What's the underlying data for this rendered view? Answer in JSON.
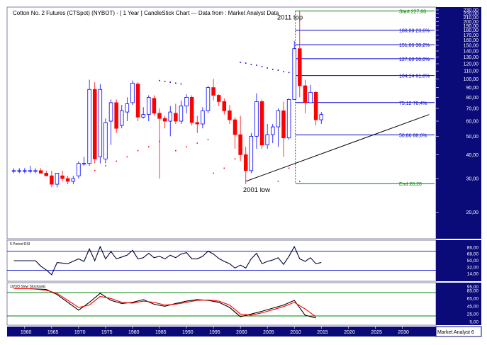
{
  "header": {
    "title": "Cotton No. 2 Futures (CTSpot) (NYBOT) -  [ 1 Year ] CandleStick Chart --- Data from : Market Analyst Data"
  },
  "footer": {
    "brand": "Market Analyst 6"
  },
  "chart_data": [
    {
      "type": "candlestick",
      "title": "Cotton No. 2 Futures (CTSpot) (NYBOT) -  [ 1 Year ] CandleStick Chart --- Data from : Market Analyst Data",
      "period": "1 Year",
      "xlim": [
        1957,
        2036
      ],
      "ylim": [
        15,
        230
      ],
      "y_scale": "log",
      "y_ticks": [
        "230,00",
        "220,00",
        "210,00",
        "200,00",
        "190,00",
        "180,00",
        "170,00",
        "160,00",
        "150,00",
        "140,00",
        "130,00",
        "120,00",
        "110,00",
        "100,00",
        "90,00",
        "80,00",
        "70,00",
        "60,00",
        "50,00",
        "40,00",
        "30,00",
        "20,00"
      ],
      "x_ticks": [
        "1960",
        "1965",
        "1970",
        "1975",
        "1980",
        "1985",
        "1990",
        "1995",
        "2000",
        "2005",
        "2010",
        "2015",
        "2020",
        "2025",
        "2030"
      ],
      "candles": [
        {
          "x": 1958,
          "o": 33,
          "h": 34,
          "l": 32,
          "c": 33
        },
        {
          "x": 1959,
          "o": 33,
          "h": 34,
          "l": 32,
          "c": 33
        },
        {
          "x": 1960,
          "o": 33,
          "h": 34,
          "l": 32,
          "c": 33
        },
        {
          "x": 1961,
          "o": 33,
          "h": 35,
          "l": 32,
          "c": 33
        },
        {
          "x": 1962,
          "o": 33,
          "h": 34,
          "l": 32,
          "c": 33
        },
        {
          "x": 1963,
          "o": 33,
          "h": 34,
          "l": 32,
          "c": 32
        },
        {
          "x": 1964,
          "o": 32,
          "h": 33,
          "l": 31,
          "c": 31
        },
        {
          "x": 1965,
          "o": 31,
          "h": 33,
          "l": 27,
          "c": 28
        },
        {
          "x": 1966,
          "o": 28,
          "h": 32,
          "l": 27,
          "c": 32
        },
        {
          "x": 1967,
          "o": 31,
          "h": 33,
          "l": 29,
          "c": 30
        },
        {
          "x": 1968,
          "o": 30,
          "h": 31,
          "l": 28,
          "c": 29
        },
        {
          "x": 1969,
          "o": 29,
          "h": 31,
          "l": 28,
          "c": 30
        },
        {
          "x": 1970,
          "o": 31,
          "h": 37,
          "l": 30,
          "c": 36
        },
        {
          "x": 1971,
          "o": 36,
          "h": 39,
          "l": 35,
          "c": 36
        },
        {
          "x": 1972,
          "o": 36,
          "h": 99,
          "l": 35,
          "c": 88
        },
        {
          "x": 1973,
          "o": 88,
          "h": 96,
          "l": 36,
          "c": 38
        },
        {
          "x": 1974,
          "o": 39,
          "h": 94,
          "l": 36,
          "c": 88
        },
        {
          "x": 1975,
          "o": 38,
          "h": 62,
          "l": 36,
          "c": 59
        },
        {
          "x": 1976,
          "o": 60,
          "h": 78,
          "l": 45,
          "c": 75
        },
        {
          "x": 1977,
          "o": 75,
          "h": 78,
          "l": 52,
          "c": 55
        },
        {
          "x": 1978,
          "o": 57,
          "h": 73,
          "l": 55,
          "c": 68
        },
        {
          "x": 1979,
          "o": 67,
          "h": 80,
          "l": 60,
          "c": 74
        },
        {
          "x": 1980,
          "o": 75,
          "h": 98,
          "l": 73,
          "c": 95
        },
        {
          "x": 1981,
          "o": 94,
          "h": 96,
          "l": 60,
          "c": 63
        },
        {
          "x": 1982,
          "o": 63,
          "h": 71,
          "l": 62,
          "c": 65
        },
        {
          "x": 1983,
          "o": 65,
          "h": 82,
          "l": 60,
          "c": 80
        },
        {
          "x": 1984,
          "o": 79,
          "h": 82,
          "l": 64,
          "c": 66
        },
        {
          "x": 1985,
          "o": 66,
          "h": 70,
          "l": 30,
          "c": 62
        },
        {
          "x": 1986,
          "o": 62,
          "h": 64,
          "l": 55,
          "c": 60
        },
        {
          "x": 1987,
          "o": 60,
          "h": 72,
          "l": 50,
          "c": 67
        },
        {
          "x": 1988,
          "o": 66,
          "h": 74,
          "l": 58,
          "c": 60
        },
        {
          "x": 1989,
          "o": 60,
          "h": 77,
          "l": 58,
          "c": 72
        },
        {
          "x": 1990,
          "o": 72,
          "h": 83,
          "l": 66,
          "c": 80
        },
        {
          "x": 1991,
          "o": 80,
          "h": 82,
          "l": 57,
          "c": 59
        },
        {
          "x": 1992,
          "o": 59,
          "h": 64,
          "l": 52,
          "c": 58
        },
        {
          "x": 1993,
          "o": 58,
          "h": 71,
          "l": 55,
          "c": 68
        },
        {
          "x": 1994,
          "o": 68,
          "h": 92,
          "l": 66,
          "c": 90
        },
        {
          "x": 1995,
          "o": 90,
          "h": 100,
          "l": 77,
          "c": 82
        },
        {
          "x": 1996,
          "o": 82,
          "h": 83,
          "l": 72,
          "c": 76
        },
        {
          "x": 1997,
          "o": 76,
          "h": 79,
          "l": 65,
          "c": 68
        },
        {
          "x": 1998,
          "o": 68,
          "h": 73,
          "l": 58,
          "c": 61
        },
        {
          "x": 1999,
          "o": 61,
          "h": 63,
          "l": 43,
          "c": 51
        },
        {
          "x": 2000,
          "o": 51,
          "h": 64,
          "l": 37,
          "c": 40
        },
        {
          "x": 2001,
          "o": 40,
          "h": 44,
          "l": 28,
          "c": 33
        },
        {
          "x": 2002,
          "o": 33,
          "h": 52,
          "l": 32,
          "c": 50
        },
        {
          "x": 2003,
          "o": 50,
          "h": 84,
          "l": 43,
          "c": 76
        },
        {
          "x": 2004,
          "o": 76,
          "h": 78,
          "l": 43,
          "c": 45
        },
        {
          "x": 2005,
          "o": 45,
          "h": 58,
          "l": 43,
          "c": 51
        },
        {
          "x": 2006,
          "o": 51,
          "h": 58,
          "l": 46,
          "c": 56
        },
        {
          "x": 2007,
          "o": 56,
          "h": 70,
          "l": 44,
          "c": 68
        },
        {
          "x": 2008,
          "o": 68,
          "h": 76,
          "l": 39,
          "c": 49
        },
        {
          "x": 2009,
          "o": 49,
          "h": 79,
          "l": 48,
          "c": 78
        },
        {
          "x": 2010,
          "o": 78,
          "h": 158,
          "l": 78,
          "c": 144
        },
        {
          "x": 2011,
          "o": 144,
          "h": 227,
          "l": 80,
          "c": 92
        },
        {
          "x": 2012,
          "o": 92,
          "h": 99,
          "l": 66,
          "c": 75
        },
        {
          "x": 2013,
          "o": 75,
          "h": 93,
          "l": 75,
          "c": 85
        },
        {
          "x": 2014,
          "o": 85,
          "h": 86,
          "l": 57,
          "c": 61
        },
        {
          "x": 2015,
          "o": 61,
          "h": 67,
          "l": 58,
          "c": 65
        }
      ],
      "fib_levels": [
        {
          "value": 227,
          "label": "Start 227,00",
          "color": "#008000"
        },
        {
          "value": 180.08,
          "label": "180,08 23,6%",
          "color": "#0000cc"
        },
        {
          "value": 151.06,
          "label": "151,06 38,2%",
          "color": "#0000cc"
        },
        {
          "value": 127.6,
          "label": "127,60 50,0%",
          "color": "#0000cc"
        },
        {
          "value": 104.14,
          "label": "104,14 61,8%",
          "color": "#0000cc"
        },
        {
          "value": 75.12,
          "label": "75,12 76,4%",
          "color": "#0000cc"
        },
        {
          "value": 50.86,
          "label": "50,86 88,6%",
          "color": "#0000cc"
        },
        {
          "value": 28.2,
          "label": "End 28,20",
          "color": "#008000"
        }
      ],
      "annotations": [
        {
          "text": "2011 top",
          "x": 2006.8,
          "y": 205
        },
        {
          "text": "2001 low",
          "x": 2000.5,
          "y": 25.5
        }
      ],
      "trendline": {
        "x1": 2001,
        "y1": 29,
        "x2": 2035,
        "y2": 65
      },
      "dots_red": [
        {
          "x": 1973,
          "y": 33
        },
        {
          "x": 1975,
          "y": 35
        },
        {
          "x": 1977,
          "y": 37
        },
        {
          "x": 1979,
          "y": 39
        },
        {
          "x": 1981,
          "y": 42
        },
        {
          "x": 1983,
          "y": 44
        },
        {
          "x": 1985,
          "y": 47
        },
        {
          "x": 1988,
          "y": 42
        },
        {
          "x": 1990,
          "y": 44
        },
        {
          "x": 1992,
          "y": 46
        },
        {
          "x": 1994,
          "y": 48
        },
        {
          "x": 1995,
          "y": 32
        },
        {
          "x": 1997,
          "y": 34
        },
        {
          "x": 1999,
          "y": 38
        },
        {
          "x": 2007,
          "y": 29
        },
        {
          "x": 2009,
          "y": 34
        },
        {
          "x": 2011,
          "y": 29
        }
      ],
      "dots_blue": [
        {
          "x": 1985,
          "y": 98
        },
        {
          "x": 1986,
          "y": 97
        },
        {
          "x": 1987,
          "y": 96
        },
        {
          "x": 1988,
          "y": 95
        },
        {
          "x": 1989,
          "y": 94
        },
        {
          "x": 2000,
          "y": 122
        },
        {
          "x": 2001,
          "y": 121
        },
        {
          "x": 2002,
          "y": 119
        },
        {
          "x": 2003,
          "y": 118
        },
        {
          "x": 2004,
          "y": 116
        },
        {
          "x": 2005,
          "y": 114
        },
        {
          "x": 2006,
          "y": 112
        },
        {
          "x": 2007,
          "y": 111
        },
        {
          "x": 2008,
          "y": 109
        },
        {
          "x": 2009,
          "y": 108
        }
      ],
      "up_color": "#0000ff",
      "down_color": "#ff0000",
      "trend_color": "#000000",
      "grid": false
    },
    {
      "type": "line",
      "title": "5 Period RSI",
      "ylim": [
        0,
        100
      ],
      "y_ticks": [
        "86,00",
        "68,00",
        "50,00",
        "32,00",
        "14,00"
      ],
      "bands": [
        {
          "value": 76,
          "color": "#0000cc"
        },
        {
          "value": 24,
          "color": "#0000cc"
        }
      ],
      "series": [
        {
          "color": "#000033",
          "x": [
            1958,
            1960,
            1962,
            1963,
            1964,
            1965,
            1966,
            1968,
            1970,
            1971,
            1972,
            1973,
            1974,
            1975,
            1976,
            1977,
            1978,
            1979,
            1980,
            1981,
            1982,
            1983,
            1984,
            1985,
            1986,
            1987,
            1988,
            1989,
            1990,
            1991,
            1992,
            1993,
            1994,
            1995,
            1996,
            1997,
            1998,
            1999,
            2000,
            2001,
            2002,
            2003,
            2004,
            2005,
            2006,
            2007,
            2008,
            2009,
            2010,
            2011,
            2012,
            2013,
            2014,
            2015
          ],
          "y": [
            50,
            50,
            50,
            35,
            25,
            12,
            45,
            42,
            55,
            48,
            82,
            50,
            88,
            55,
            75,
            55,
            60,
            65,
            78,
            55,
            58,
            70,
            58,
            62,
            55,
            65,
            58,
            68,
            72,
            55,
            55,
            62,
            76,
            68,
            56,
            48,
            42,
            30,
            38,
            30,
            55,
            70,
            42,
            48,
            52,
            58,
            40,
            62,
            88,
            55,
            48,
            58,
            42,
            45
          ]
        }
      ]
    },
    {
      "type": "line",
      "title": "10/3/3 Slow Stochastic",
      "ylim": [
        0,
        100
      ],
      "y_ticks": [
        "95,00",
        "85,00",
        "65,00",
        "45,00",
        "25,00",
        "5,00"
      ],
      "bands": [
        {
          "value": 80,
          "color": "#008000"
        },
        {
          "value": 20,
          "color": "#008000"
        }
      ],
      "series": [
        {
          "color": "#000000",
          "x": [
            1958,
            1961,
            1964,
            1966,
            1968,
            1970,
            1972,
            1974,
            1976,
            1978,
            1980,
            1982,
            1984,
            1986,
            1988,
            1990,
            1992,
            1994,
            1996,
            1998,
            2000,
            2002,
            2004,
            2006,
            2008,
            2010,
            2012,
            2014
          ],
          "y": [
            90,
            90,
            88,
            75,
            55,
            35,
            55,
            78,
            60,
            52,
            55,
            62,
            50,
            45,
            52,
            58,
            62,
            60,
            55,
            42,
            18,
            25,
            32,
            40,
            48,
            60,
            22,
            15
          ]
        },
        {
          "color": "#ff0000",
          "x": [
            1958,
            1961,
            1964,
            1966,
            1968,
            1970,
            1972,
            1974,
            1976,
            1978,
            1980,
            1982,
            1984,
            1986,
            1988,
            1990,
            1992,
            1994,
            1996,
            1998,
            2000,
            2002,
            2004,
            2006,
            2008,
            2010,
            2012,
            2014
          ],
          "y": [
            90,
            90,
            86,
            78,
            60,
            42,
            48,
            70,
            65,
            55,
            53,
            58,
            55,
            48,
            50,
            55,
            60,
            61,
            58,
            48,
            25,
            22,
            28,
            36,
            44,
            55,
            38,
            18
          ]
        }
      ]
    }
  ]
}
